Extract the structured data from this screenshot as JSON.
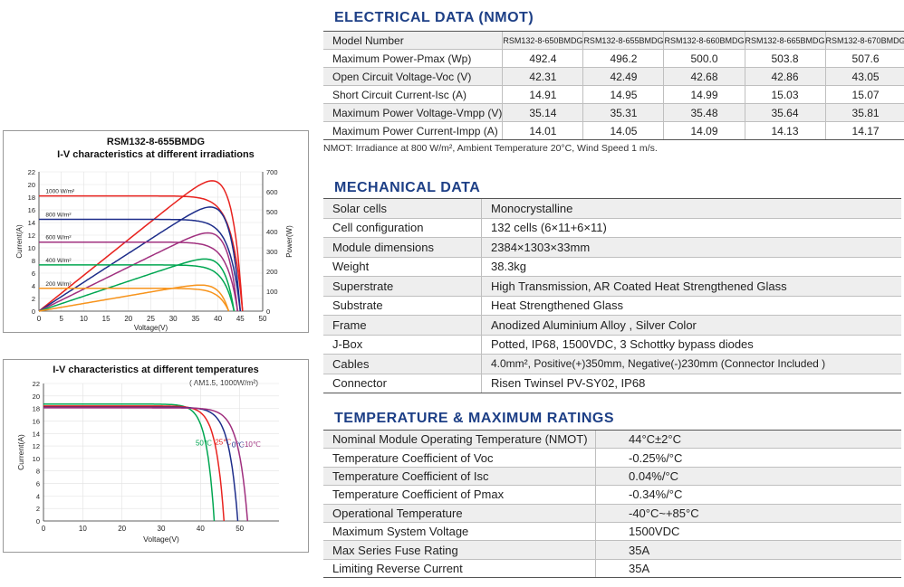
{
  "electrical": {
    "title": "ELECTRICAL DATA (NMOT)",
    "header": [
      "Model Number",
      "RSM132-8-650BMDG",
      "RSM132-8-655BMDG",
      "RSM132-8-660BMDG",
      "RSM132-8-665BMDG",
      "RSM132-8-670BMDG"
    ],
    "rows": [
      {
        "label": "Maximum Power-Pmax (Wp)",
        "values": [
          "492.4",
          "496.2",
          "500.0",
          "503.8",
          "507.6"
        ]
      },
      {
        "label": "Open Circuit Voltage-Voc (V)",
        "values": [
          "42.31",
          "42.49",
          "42.68",
          "42.86",
          "43.05"
        ]
      },
      {
        "label": "Short Circuit Current-Isc (A)",
        "values": [
          "14.91",
          "14.95",
          "14.99",
          "15.03",
          "15.07"
        ]
      },
      {
        "label": "Maximum Power Voltage-Vmpp (V)",
        "values": [
          "35.14",
          "35.31",
          "35.48",
          "35.64",
          "35.81"
        ]
      },
      {
        "label": "Maximum Power Current-Impp (A)",
        "values": [
          "14.01",
          "14.05",
          "14.09",
          "14.13",
          "14.17"
        ]
      }
    ],
    "note": "NMOT: Irradiance at 800 W/m², Ambient Temperature 20°C, Wind Speed 1 m/s."
  },
  "mechanical": {
    "title": "MECHANICAL DATA",
    "rows": [
      {
        "label": "Solar cells",
        "value": "Monocrystalline"
      },
      {
        "label": "Cell configuration",
        "value": "132 cells (6×11+6×11)"
      },
      {
        "label": "Module dimensions",
        "value": "2384×1303×33mm"
      },
      {
        "label": "Weight",
        "value": "38.3kg"
      },
      {
        "label": "Superstrate",
        "value": "High Transmission, AR Coated Heat Strengthened Glass"
      },
      {
        "label": "Substrate",
        "value": "Heat Strengthened Glass"
      },
      {
        "label": "Frame",
        "value": "Anodized Aluminium Alloy , Silver Color"
      },
      {
        "label": "J-Box",
        "value": "Potted, IP68, 1500VDC, 3 Schottky bypass diodes"
      },
      {
        "label": "Cables",
        "value": "4.0mm², Positive(+)350mm, Negative(-)230mm (Connector Included )"
      },
      {
        "label": "Connector",
        "value": "Risen Twinsel PV-SY02, IP68"
      }
    ]
  },
  "temperature": {
    "title": "TEMPERATURE & MAXIMUM RATINGS",
    "rows": [
      {
        "label": "Nominal Module Operating Temperature (NMOT)",
        "value": "44°C±2°C"
      },
      {
        "label": "Temperature Coefficient of Voc",
        "value": "-0.25%/°C"
      },
      {
        "label": "Temperature Coefficient of Isc",
        "value": "0.04%/°C"
      },
      {
        "label": "Temperature Coefficient of Pmax",
        "value": "-0.34%/°C"
      },
      {
        "label": "Operational Temperature",
        "value": "-40°C~+85°C"
      },
      {
        "label": "Maximum System Voltage",
        "value": "1500VDC"
      },
      {
        "label": "Max Series Fuse Rating",
        "value": "35A"
      },
      {
        "label": "Limiting Reverse Current",
        "value": "35A"
      }
    ]
  },
  "chart_data": [
    {
      "type": "line",
      "title": "RSM132-8-655BMDG",
      "subtitle": "I-V characteristics at different irradiations",
      "xlabel": "Voltage(V)",
      "ylabel": "Current(A)",
      "y2label": "Power(W)",
      "xlim": [
        0,
        50
      ],
      "ylim": [
        0,
        22
      ],
      "y2lim": [
        0,
        700
      ],
      "xticks": [
        0,
        5,
        10,
        15,
        20,
        25,
        30,
        35,
        40,
        45,
        50
      ],
      "yticks": [
        0,
        2,
        4,
        6,
        8,
        10,
        12,
        14,
        16,
        18,
        20,
        22
      ],
      "y2ticks": [
        0,
        100,
        200,
        300,
        400,
        500,
        600,
        700
      ],
      "series": [
        {
          "name": "1000 W/m²",
          "isc": 18.2,
          "voc": 45.5,
          "pmax": 655,
          "vmp": 37.5,
          "iv_color": "#e8231f",
          "p_color": "#e8231f"
        },
        {
          "name": "800 W/m²",
          "isc": 14.5,
          "voc": 45.0,
          "pmax": 523,
          "vmp": 37.0,
          "iv_color": "#1d2d8a",
          "p_color": "#1d2d8a"
        },
        {
          "name": "600 W/m²",
          "isc": 10.9,
          "voc": 44.4,
          "pmax": 393,
          "vmp": 36.5,
          "iv_color": "#a0307f",
          "p_color": "#a0307f"
        },
        {
          "name": "400 W/m²",
          "isc": 7.3,
          "voc": 43.6,
          "pmax": 262,
          "vmp": 35.8,
          "iv_color": "#00a651",
          "p_color": "#00a651"
        },
        {
          "name": "200 W/m²",
          "isc": 3.6,
          "voc": 42.4,
          "pmax": 131,
          "vmp": 35.0,
          "iv_color": "#f7941d",
          "p_color": "#f7941d"
        }
      ]
    },
    {
      "type": "line",
      "title": "I-V characteristics at different temperatures",
      "subtitle": "( AM1.5, 1000W/m²)",
      "xlabel": "Voltage(V)",
      "ylabel": "Current(A)",
      "xlim": [
        0,
        60
      ],
      "ylim": [
        0,
        22
      ],
      "xticks": [
        0,
        10,
        20,
        30,
        40,
        50
      ],
      "yticks": [
        0,
        2,
        4,
        6,
        8,
        10,
        12,
        14,
        16,
        18,
        20,
        22
      ],
      "series": [
        {
          "name": "50℃",
          "isc": 18.7,
          "voc": 43.5,
          "color": "#00a651"
        },
        {
          "name": "25℃",
          "isc": 18.4,
          "voc": 46.0,
          "color": "#e8231f"
        },
        {
          "name": "0℃",
          "isc": 18.2,
          "voc": 49.5,
          "color": "#1d2d8a"
        },
        {
          "name": "-10℃",
          "isc": 18.1,
          "voc": 52.0,
          "color": "#a0307f"
        }
      ]
    }
  ]
}
